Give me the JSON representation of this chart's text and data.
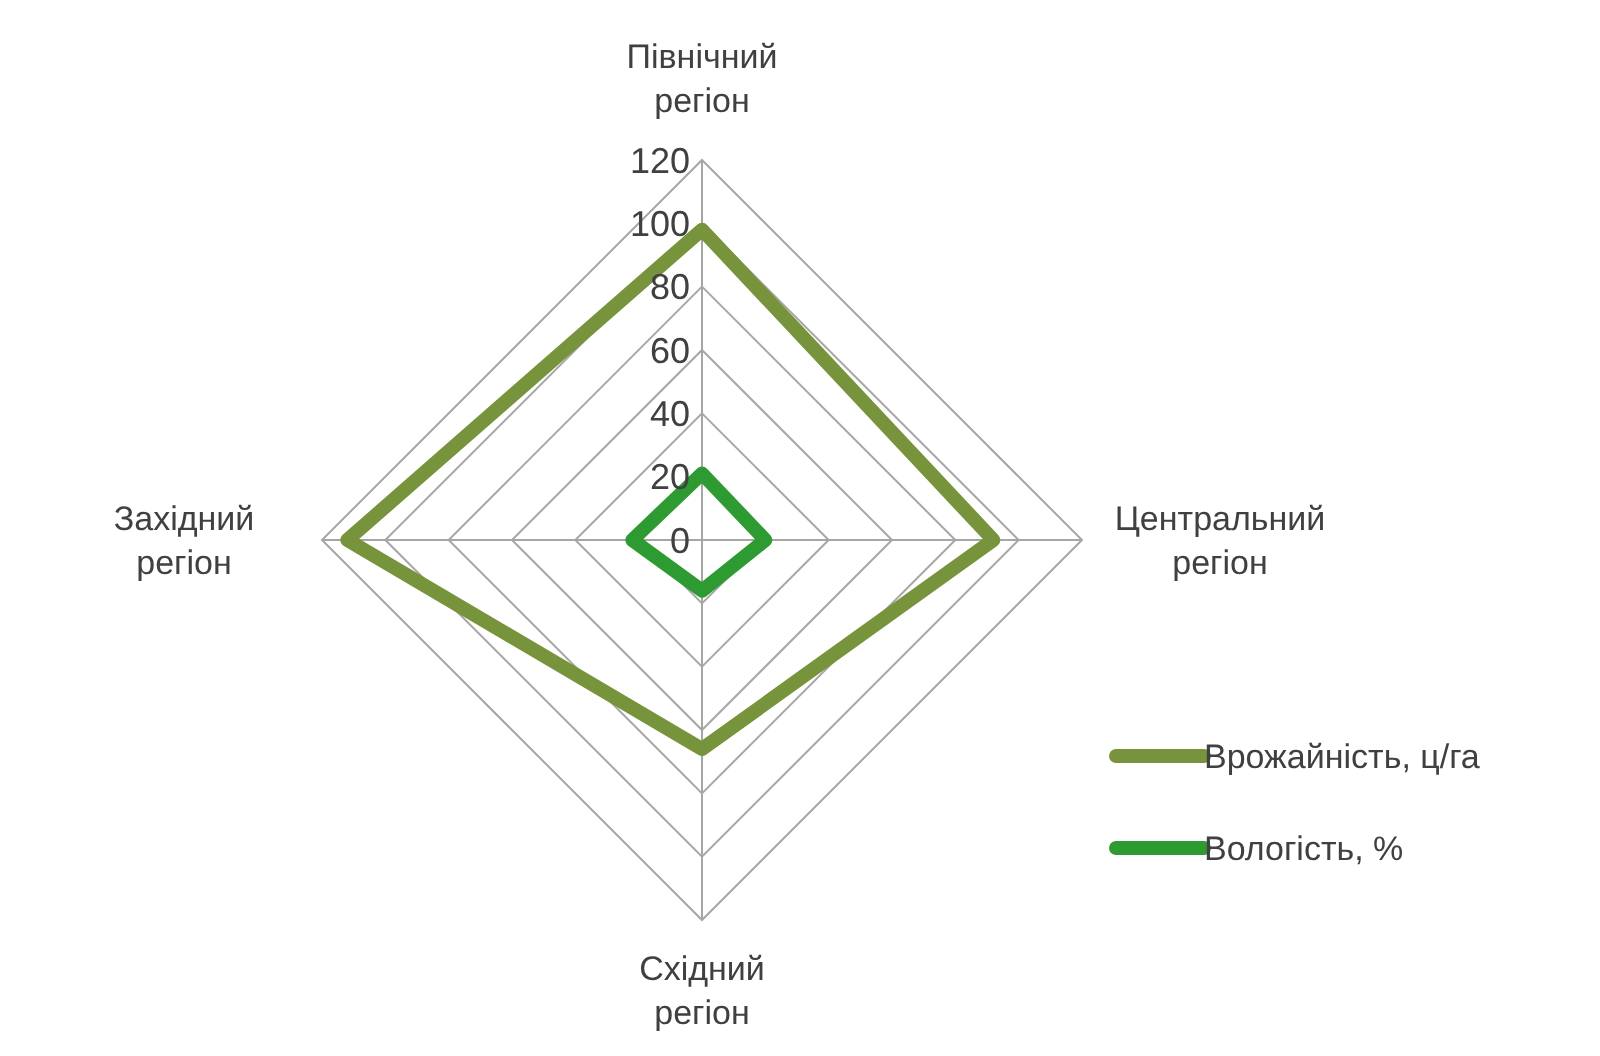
{
  "chart_data": {
    "type": "radar",
    "categories": [
      "Північний регіон",
      "Центральний регіон",
      "Східний регіон",
      "Західний регіон"
    ],
    "series": [
      {
        "name": "Врожайність, ц/га",
        "color": "#77933c",
        "values": [
          98,
          92,
          66,
          112
        ]
      },
      {
        "name": "Вологість, %",
        "color": "#2e9a32",
        "values": [
          21,
          20,
          16,
          22
        ]
      }
    ],
    "ylim": [
      0,
      120
    ],
    "yticks": [
      0,
      20,
      40,
      60,
      80,
      100,
      120
    ],
    "grid": true,
    "legend": "right"
  }
}
